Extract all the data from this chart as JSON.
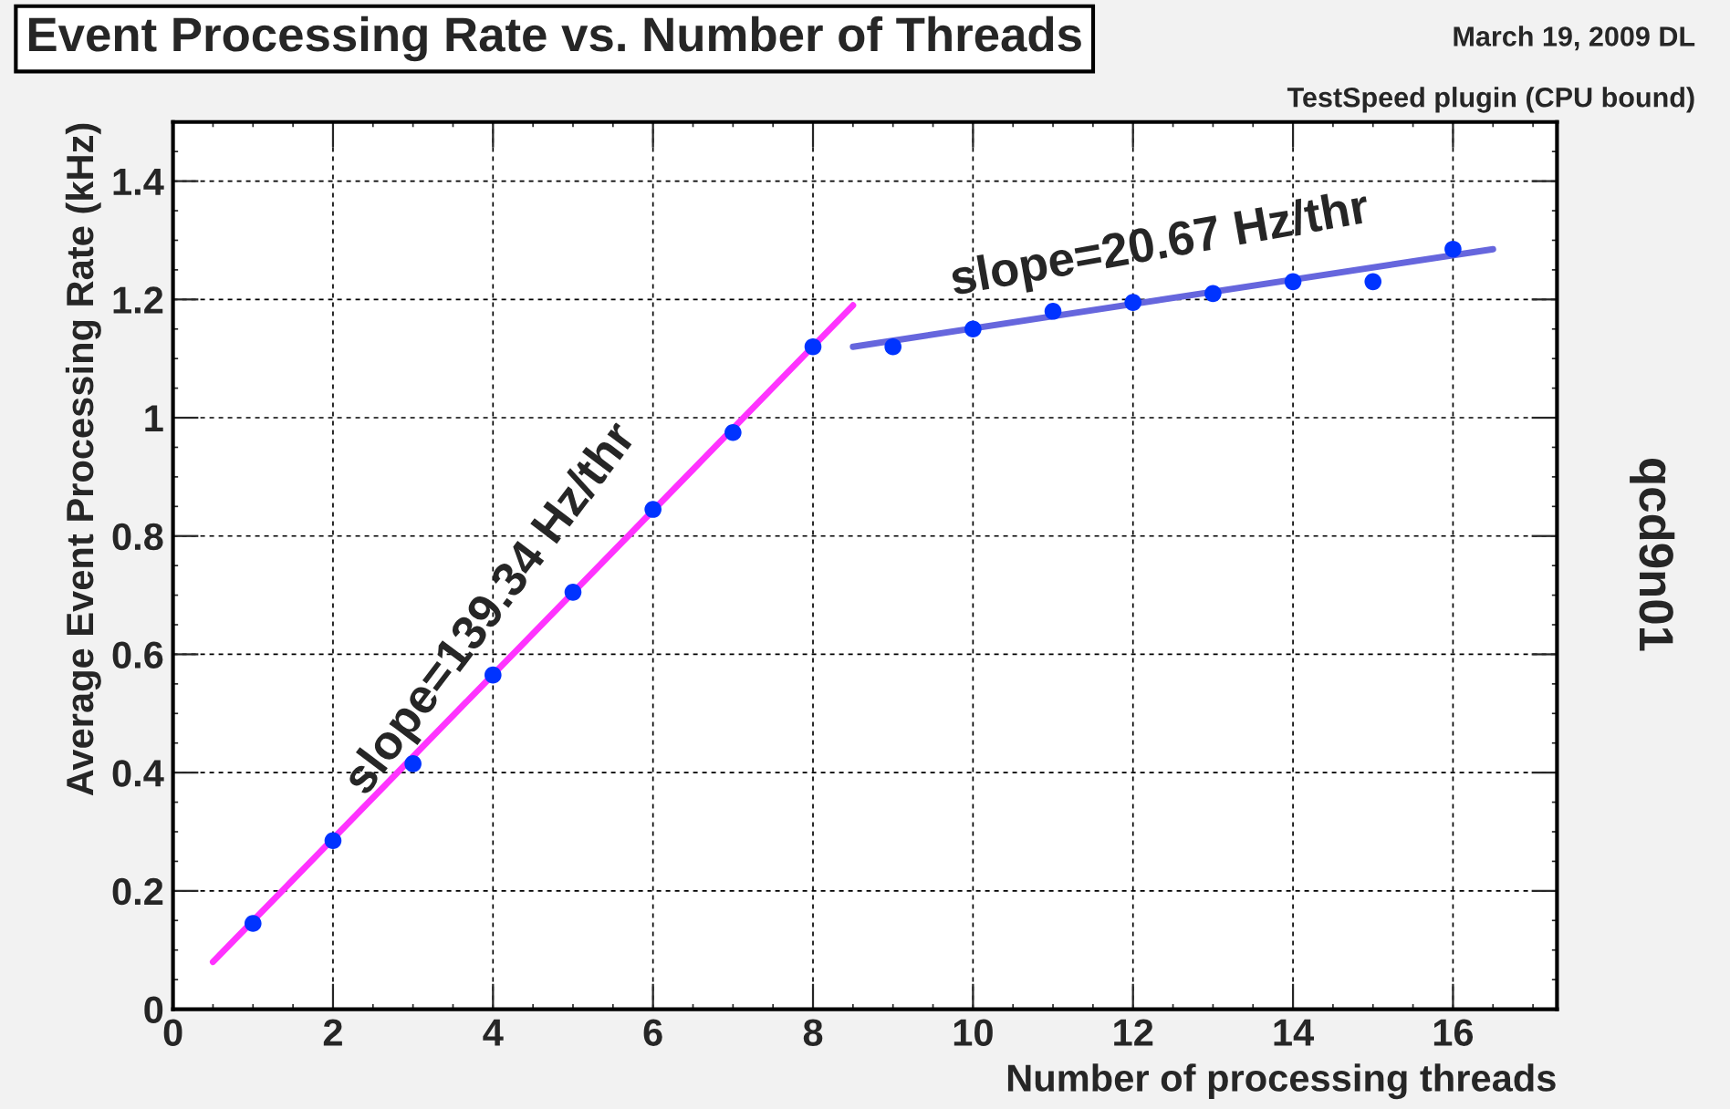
{
  "chart_data": {
    "type": "scatter",
    "title": "Event Processing Rate vs. Number of Threads",
    "xlabel": "Number of processing threads",
    "ylabel": "Average Event Processing Rate (kHz)",
    "x": [
      1,
      2,
      3,
      4,
      5,
      6,
      7,
      8,
      9,
      10,
      11,
      12,
      13,
      14,
      15,
      16
    ],
    "series": [
      {
        "color": "#0033ff",
        "marker": "circle",
        "values": [
          0.145,
          0.285,
          0.415,
          0.565,
          0.705,
          0.845,
          0.975,
          1.12,
          1.12,
          1.15,
          1.18,
          1.195,
          1.21,
          1.23,
          1.23,
          1.285
        ]
      },
      {
        "type": "line",
        "color": "#ff33ff",
        "x": [
          0.5,
          8.5
        ],
        "values": [
          0.08,
          1.19
        ]
      },
      {
        "type": "line",
        "color": "#6666dd",
        "x": [
          8.5,
          16.5
        ],
        "values": [
          1.12,
          1.285
        ]
      }
    ],
    "annotations": [
      "slope=139.34 Hz/thr",
      "slope=20.67 Hz/thr",
      "March 19, 2009 DL",
      "TestSpeed plugin (CPU bound)",
      "qcd9n01"
    ],
    "xlim": [
      0,
      17.3
    ],
    "ylim": [
      0,
      1.5
    ],
    "xticks": [
      0,
      2,
      4,
      6,
      8,
      10,
      12,
      14,
      16
    ],
    "yticks": [
      0,
      0.2,
      0.4,
      0.6,
      0.8,
      1,
      1.2,
      1.4
    ],
    "grid": true,
    "legend": false
  }
}
